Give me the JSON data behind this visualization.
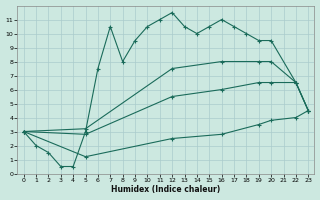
{
  "xlabel": "Humidex (Indice chaleur)",
  "bg_color": "#cce8e0",
  "grid_color": "#aacccc",
  "line_color": "#1a6b5a",
  "series1_x": [
    0,
    1,
    2,
    3,
    4,
    5,
    6,
    7,
    8,
    9,
    10,
    11,
    12,
    13,
    14,
    15,
    16,
    17,
    18,
    19,
    20,
    22,
    23
  ],
  "series1_y": [
    3,
    2,
    1.5,
    0.5,
    0.5,
    3.0,
    7.5,
    10.5,
    8.0,
    9.5,
    10.5,
    11.0,
    11.5,
    10.5,
    10.0,
    10.5,
    11.0,
    10.5,
    10.0,
    9.5,
    9.5,
    6.5,
    4.5
  ],
  "series2_x": [
    0,
    5,
    12,
    16,
    19,
    20,
    22,
    23
  ],
  "series2_y": [
    3,
    3.2,
    7.5,
    8.0,
    8.0,
    8.0,
    6.5,
    4.5
  ],
  "series3_x": [
    0,
    5,
    12,
    16,
    19,
    20,
    22,
    23
  ],
  "series3_y": [
    3,
    2.8,
    5.5,
    6.0,
    6.5,
    6.5,
    6.5,
    4.5
  ],
  "series4_x": [
    0,
    5,
    12,
    16,
    19,
    20,
    22,
    23
  ],
  "series4_y": [
    3,
    1.2,
    2.5,
    2.8,
    3.5,
    3.8,
    4.0,
    4.5
  ],
  "xlim": [
    -0.5,
    23.5
  ],
  "ylim": [
    0,
    12
  ],
  "xticks": [
    0,
    1,
    2,
    3,
    4,
    5,
    6,
    7,
    8,
    9,
    10,
    11,
    12,
    13,
    14,
    15,
    16,
    17,
    18,
    19,
    20,
    21,
    22,
    23
  ],
  "yticks": [
    0,
    1,
    2,
    3,
    4,
    5,
    6,
    7,
    8,
    9,
    10,
    11
  ]
}
